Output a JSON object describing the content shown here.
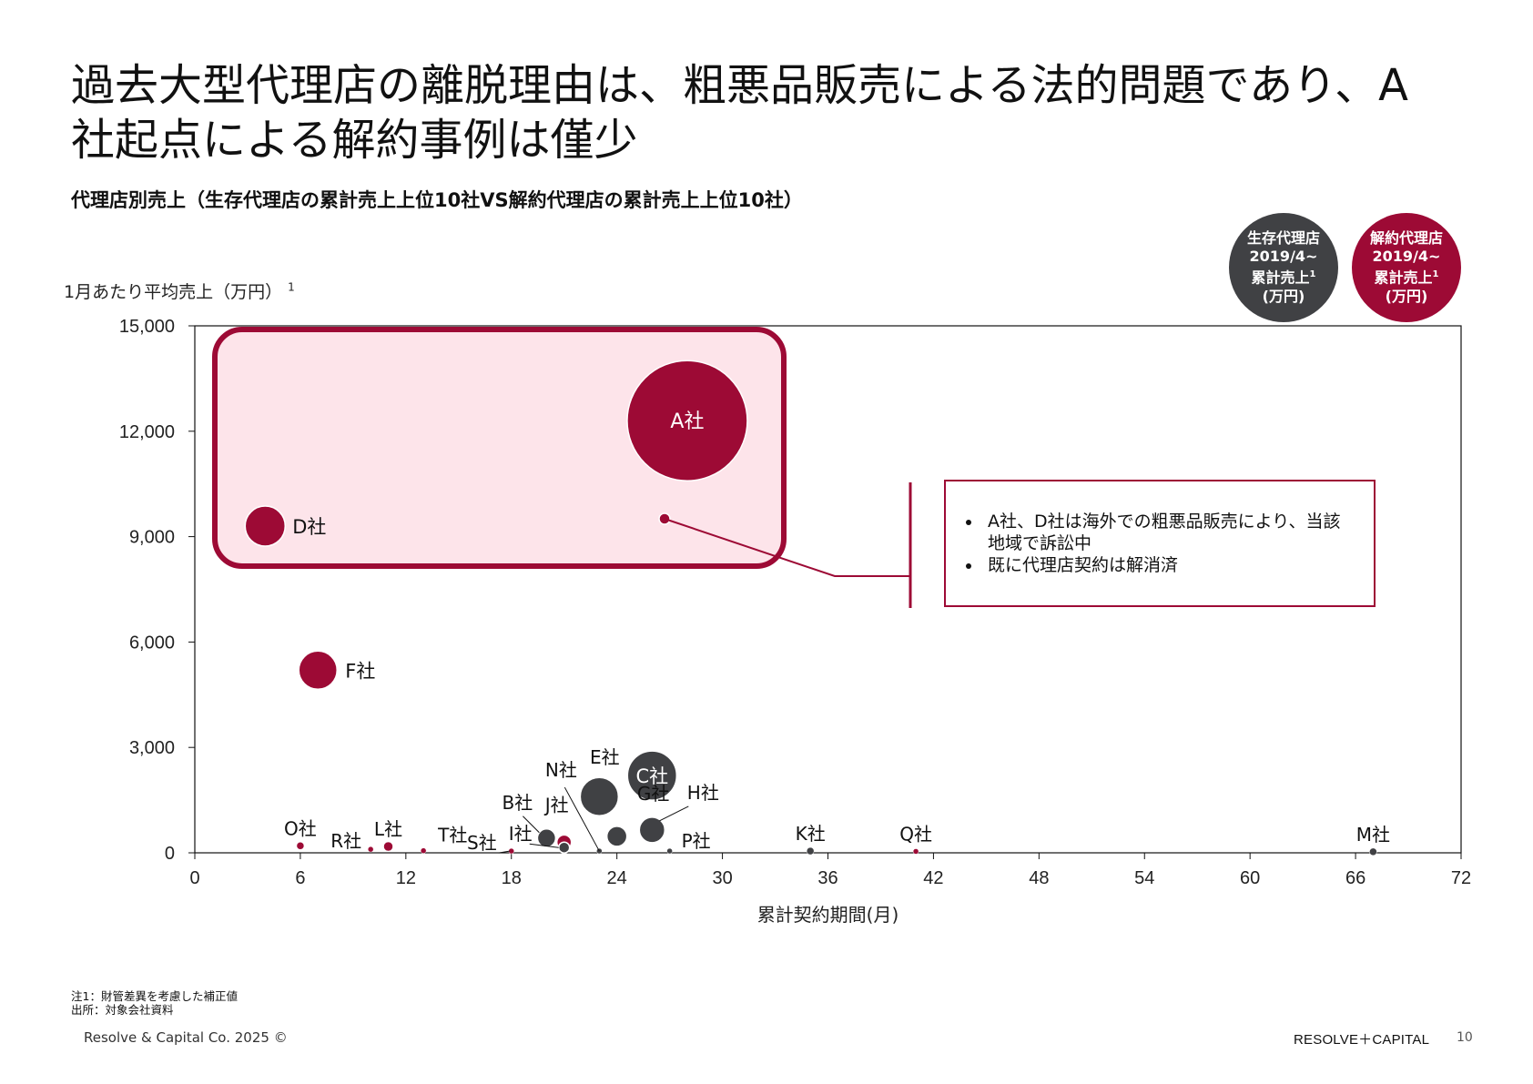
{
  "title": "過去大型代理店の離脱理由は、粗悪品販売による法的問題であり、A社起点による解約事例は僅少",
  "subtitle": "代理店別売上（生存代理店の累計売上上位10社VS解約代理店の累計売上上位10社）",
  "legend": {
    "survive": {
      "line1": "生存代理店",
      "line2": "2019/4~",
      "line3": "累計売上",
      "sup": "1",
      "line4": "(万円)",
      "color": "#404144"
    },
    "cancel": {
      "line1": "解約代理店",
      "line2": "2019/4~",
      "line3": "累計売上",
      "sup": "1",
      "line4": "(万円)",
      "color": "#9d0a35"
    }
  },
  "callout": {
    "items": [
      "A社、D社は海外での粗悪品販売により、当該地域で訴訟中",
      "既に代理店契約は解消済"
    ]
  },
  "footnotes": {
    "note1": "注1：財管差異を考慮した補正値",
    "source": "出所：対象会社資料"
  },
  "footer": {
    "copyright": "Resolve & Capital Co. 2025 ©",
    "logo": "RESOLVE＋CAPITAL",
    "page": "10"
  },
  "chart_data": {
    "type": "bubble",
    "ylabel": "1月あたり平均売上（万円）",
    "ylabel_sup": "1",
    "xlabel": "累計契約期間(月)",
    "xlim": [
      0,
      72
    ],
    "ylim": [
      0,
      15000
    ],
    "xticks": [
      "0",
      "6",
      "12",
      "18",
      "24",
      "30",
      "36",
      "42",
      "48",
      "54",
      "60",
      "66",
      "72"
    ],
    "yticks": [
      "0",
      "3,000",
      "6,000",
      "9,000",
      "12,000",
      "15,000"
    ],
    "colors": {
      "survive": "#404144",
      "cancel": "#9d0a35",
      "highlight_fill": "#fde4ea"
    },
    "series": [
      {
        "name": "解約代理店",
        "points": [
          {
            "label": "A社",
            "x": 28,
            "y": 12300,
            "size": 66
          },
          {
            "label": "D社",
            "x": 4,
            "y": 9300,
            "size": 22
          },
          {
            "label": "F社",
            "x": 7,
            "y": 5200,
            "size": 21
          },
          {
            "label": "O社",
            "x": 6,
            "y": 200,
            "size": 4
          },
          {
            "label": "R社",
            "x": 10,
            "y": 100,
            "size": 3
          },
          {
            "label": "L社",
            "x": 11,
            "y": 180,
            "size": 5
          },
          {
            "label": "T社",
            "x": 13,
            "y": 60,
            "size": 3
          },
          {
            "label": "S社",
            "x": 18,
            "y": 50,
            "size": 3
          },
          {
            "label": "J社",
            "x": 21,
            "y": 300,
            "size": 8
          },
          {
            "label": "Q社",
            "x": 41,
            "y": 40,
            "size": 3
          }
        ]
      },
      {
        "name": "生存代理店",
        "points": [
          {
            "label": "C社",
            "x": 26,
            "y": 2200,
            "size": 27
          },
          {
            "label": "E社",
            "x": 23,
            "y": 1600,
            "size": 21
          },
          {
            "label": "H社",
            "x": 26,
            "y": 650,
            "size": 14
          },
          {
            "label": "G社",
            "x": 24,
            "y": 470,
            "size": 11
          },
          {
            "label": "B社",
            "x": 20,
            "y": 420,
            "size": 10
          },
          {
            "label": "I社",
            "x": 21,
            "y": 150,
            "size": 6
          },
          {
            "label": "N社",
            "x": 23,
            "y": 50,
            "size": 3
          },
          {
            "label": "P社",
            "x": 27,
            "y": 50,
            "size": 3
          },
          {
            "label": "K社",
            "x": 35,
            "y": 50,
            "size": 4
          },
          {
            "label": "M社",
            "x": 67,
            "y": 30,
            "size": 4
          }
        ]
      }
    ]
  }
}
